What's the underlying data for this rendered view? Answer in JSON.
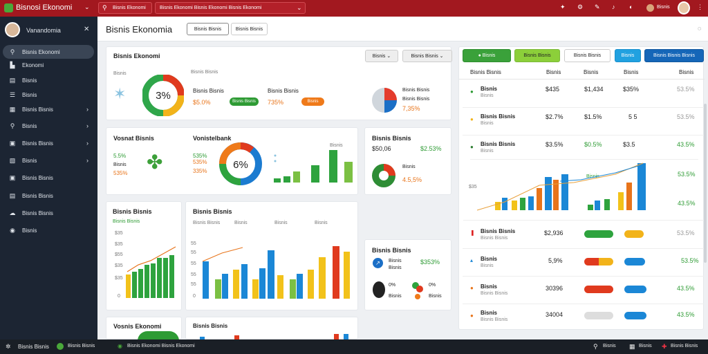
{
  "topbar": {
    "app_name": "Bisnosi Ekonomi",
    "menu1": "Bisnis Ekonomi",
    "menu2": "Bisnis Ekonomi Bisnis Ekonomi Bisnis Ekonomi",
    "profile_label": "Bisnis"
  },
  "sidebar": {
    "user_name": "Vanandomia",
    "items": [
      "Bisnis Ekonomi",
      "Ekonomi",
      "Bisnis",
      "Bisnis",
      "Bisnis Bisnis",
      "Bisnis",
      "Bisnis Bisnis",
      "Bisnis",
      "Bisnis Bisnis",
      "Bisnis Bisnis",
      "Bisnis Bisnis",
      "Bisnis"
    ]
  },
  "header": {
    "title": "Bisnis Ekonomia",
    "tab1": "Bisnis Bisnis",
    "tab2": "Bisnis Bisnis"
  },
  "card1": {
    "title": "Bisnis Ekonomi",
    "dd1": "Bisnis",
    "dd2": "Bisnis Bisnis",
    "legend": "Bisnis Bisnis",
    "lbl_left": "Bisnis",
    "label_a": "Bisnis Bisnis",
    "val_a": "$5.0%",
    "label_b": "Bisnis Bisnis",
    "val_b": "735%",
    "pill_a": "Bisnis Bisnis",
    "pill_b": "Bisnis",
    "donut_center": "3%",
    "right_label1": "Bisnis Bisnis",
    "right_label2": "Bisnis Bisnis",
    "right_val": "7,35%"
  },
  "card_vi": {
    "title": "Vosnat Bisnis",
    "v1": "5.5%",
    "v2": "Bisnis",
    "v3": "535%",
    "donut_title": "Vonistelbank",
    "p1": "535%",
    "p2": "535%",
    "p3": "335%",
    "donut_center": "6%",
    "bar_label": "Bisnis"
  },
  "card_rb": {
    "title": "Bisnis Bisnis",
    "val": "$50,06",
    "val2": "$2.53%",
    "sub": "Bisnis",
    "sub2": "4.5,5%"
  },
  "card_bg": {
    "title": "Bisnis Bisnis",
    "val": "Bisnis Bisnis",
    "ticks": [
      "$35",
      "$35",
      "$55",
      "$35",
      "$35",
      "0"
    ]
  },
  "card_bc": {
    "title": "Bisnis Bisnis",
    "legend": [
      "Bisnis Bisnis",
      "Bisnis",
      "Bisnis",
      "Bisnis"
    ],
    "ticks": [
      "55",
      "55",
      "55",
      "55",
      "55",
      "0"
    ]
  },
  "card_ex": {
    "title": "Bisnis Bisnis",
    "v1": "Bisnis",
    "v1b": "Bisnis",
    "v2": "$353%",
    "v3": "0%",
    "v4": "0%",
    "v5": "Bisnis",
    "v6": "Bisnis"
  },
  "card_bo": {
    "title": "Vosnis Ekonomi"
  },
  "card_bo2": {
    "legend": "Bisnis Bisnis"
  },
  "right": {
    "btn1": "Bisnis",
    "btn2": "Bisnis Bisnis",
    "btn3": "Bisnis Bisnis",
    "btn4": "Bisnis",
    "btn5": "Bisnis Bisnis Bisnis",
    "cols": [
      "Bisnis Bisnis",
      "Bisnis",
      "Bisnis",
      "Bisnis",
      "Bisnis"
    ],
    "rows": [
      {
        "name": "Bisnis",
        "sub": "Bisnis",
        "c1": "$435",
        "c2": "$1,434",
        "c3": "$35%",
        "c4": "53.5%"
      },
      {
        "name": "Bisnis Bisnis",
        "sub": "Bisnis",
        "c1": "$2.7%",
        "c2": "$1.5%",
        "c3": "5 5",
        "c4": "53.5%"
      },
      {
        "name": "Bisnis Bisnis",
        "sub": "Bisnis",
        "c1": "$3.5%",
        "c2": "$0.5%",
        "c3": "$3.5",
        "c4": "43.5%"
      }
    ],
    "chart_label": "Bisnis",
    "chart_val1": "53.5%",
    "chart_val2": "43.5%",
    "tick": "$35",
    "rows2": [
      {
        "name": "Bisnis Bisnis",
        "sub": "Bisnis Bisnis",
        "c1": "$2,936",
        "c4": "53.5%"
      },
      {
        "name": "Bisnis",
        "sub": "Bisnis",
        "c1": "5,9%",
        "c4": "53.5%"
      },
      {
        "name": "Bisnis",
        "sub": "Bisnis Bisnis",
        "c1": "30396",
        "c4": "43.5%"
      },
      {
        "name": "Bisnis",
        "sub": "Bisnis Bisnis",
        "c1": "34004",
        "c4": "43.5%"
      }
    ]
  },
  "bottom": {
    "left": "Bisnis Bisnis",
    "b1": "Bisnis Bisnis",
    "b2": "Bisnis Ekonomi Bisnis Ekonomi",
    "r1": "Bisnis",
    "r2": "Bisnis",
    "r3": "Bisnis Bisnis"
  }
}
